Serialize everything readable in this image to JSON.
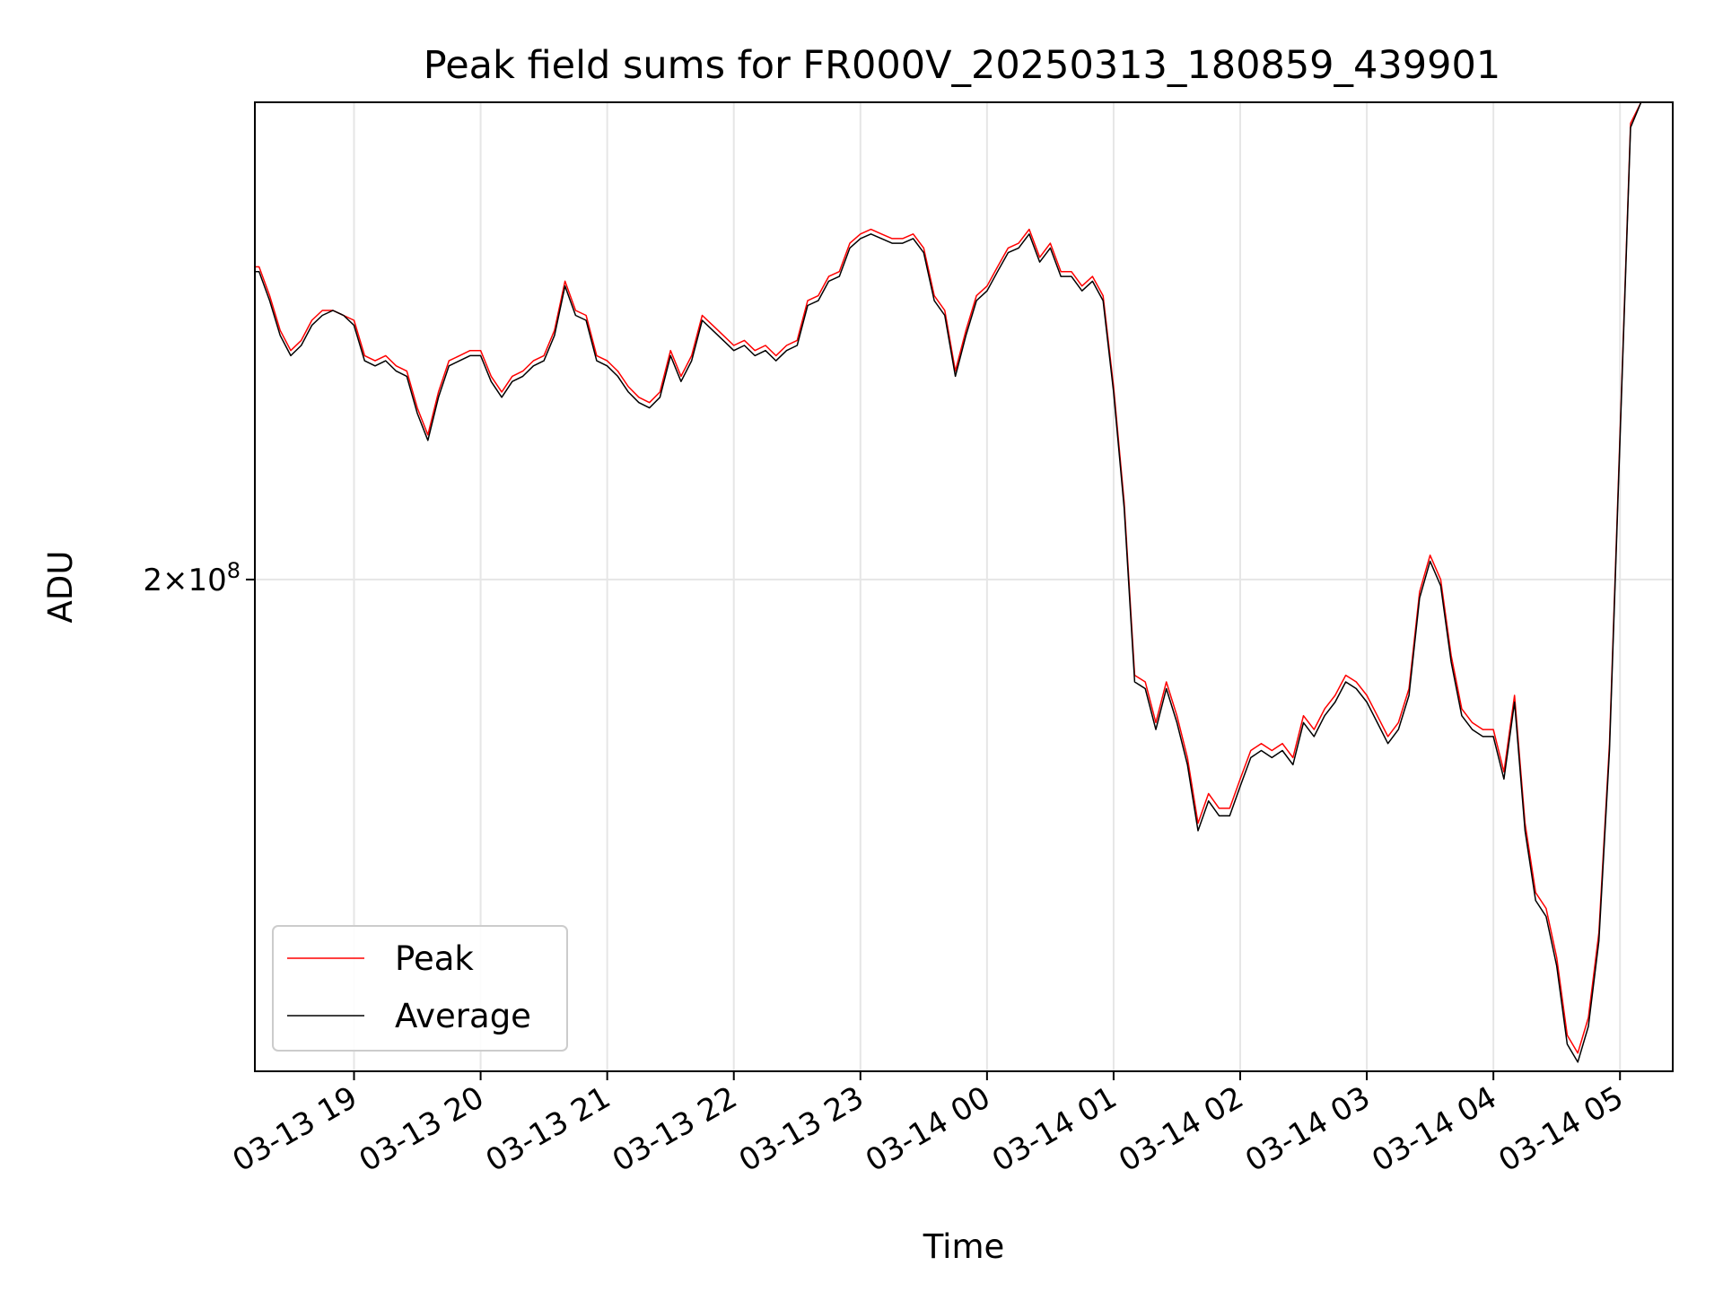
{
  "chart_data": {
    "type": "line",
    "title": "Peak field sums for FR000V_20250313_180859_439901",
    "xlabel": "Time",
    "ylabel": "ADU",
    "yscale": "log",
    "grid": true,
    "legend_position": "lower-left",
    "x_ticks": [
      "03-13 19",
      "03-13 20",
      "03-13 21",
      "03-13 22",
      "03-13 23",
      "03-14 00",
      "03-14 01",
      "03-14 02",
      "03-14 03",
      "03-14 04",
      "03-14 05"
    ],
    "y_ticks": [
      {
        "value": 200000000,
        "mantissa": "2",
        "exponent": "8"
      }
    ],
    "xlim": [
      "2025-03-13 18:13",
      "2025-03-14 05:25"
    ],
    "ylim": [
      134000000,
      295000000
    ],
    "colors": {
      "Peak": "#ff0000",
      "Average": "#000000"
    },
    "series": [
      {
        "name": "Peak",
        "x": [
          "2025-03-13 18:13",
          "2025-03-13 18:15",
          "2025-03-13 18:20",
          "2025-03-13 18:25",
          "2025-03-13 18:30",
          "2025-03-13 18:35",
          "2025-03-13 18:40",
          "2025-03-13 18:45",
          "2025-03-13 18:50",
          "2025-03-13 18:55",
          "2025-03-13 19:00",
          "2025-03-13 19:05",
          "2025-03-13 19:10",
          "2025-03-13 19:15",
          "2025-03-13 19:20",
          "2025-03-13 19:25",
          "2025-03-13 19:30",
          "2025-03-13 19:35",
          "2025-03-13 19:40",
          "2025-03-13 19:45",
          "2025-03-13 19:50",
          "2025-03-13 19:55",
          "2025-03-13 20:00",
          "2025-03-13 20:05",
          "2025-03-13 20:10",
          "2025-03-13 20:15",
          "2025-03-13 20:20",
          "2025-03-13 20:25",
          "2025-03-13 20:30",
          "2025-03-13 20:35",
          "2025-03-13 20:40",
          "2025-03-13 20:45",
          "2025-03-13 20:50",
          "2025-03-13 20:55",
          "2025-03-13 21:00",
          "2025-03-13 21:05",
          "2025-03-13 21:10",
          "2025-03-13 21:15",
          "2025-03-13 21:20",
          "2025-03-13 21:25",
          "2025-03-13 21:30",
          "2025-03-13 21:35",
          "2025-03-13 21:40",
          "2025-03-13 21:45",
          "2025-03-13 21:50",
          "2025-03-13 21:55",
          "2025-03-13 22:00",
          "2025-03-13 22:05",
          "2025-03-13 22:10",
          "2025-03-13 22:15",
          "2025-03-13 22:20",
          "2025-03-13 22:25",
          "2025-03-13 22:30",
          "2025-03-13 22:35",
          "2025-03-13 22:40",
          "2025-03-13 22:45",
          "2025-03-13 22:50",
          "2025-03-13 22:55",
          "2025-03-13 23:00",
          "2025-03-13 23:05",
          "2025-03-13 23:10",
          "2025-03-13 23:15",
          "2025-03-13 23:20",
          "2025-03-13 23:25",
          "2025-03-13 23:30",
          "2025-03-13 23:35",
          "2025-03-13 23:40",
          "2025-03-13 23:45",
          "2025-03-13 23:50",
          "2025-03-13 23:55",
          "2025-03-14 00:00",
          "2025-03-14 00:05",
          "2025-03-14 00:10",
          "2025-03-14 00:15",
          "2025-03-14 00:20",
          "2025-03-14 00:25",
          "2025-03-14 00:30",
          "2025-03-14 00:35",
          "2025-03-14 00:40",
          "2025-03-14 00:45",
          "2025-03-14 00:50",
          "2025-03-14 00:55",
          "2025-03-14 01:00",
          "2025-03-14 01:05",
          "2025-03-14 01:10",
          "2025-03-14 01:15",
          "2025-03-14 01:20",
          "2025-03-14 01:25",
          "2025-03-14 01:30",
          "2025-03-14 01:35",
          "2025-03-14 01:40",
          "2025-03-14 01:45",
          "2025-03-14 01:50",
          "2025-03-14 01:55",
          "2025-03-14 02:00",
          "2025-03-14 02:05",
          "2025-03-14 02:10",
          "2025-03-14 02:15",
          "2025-03-14 02:20",
          "2025-03-14 02:25",
          "2025-03-14 02:30",
          "2025-03-14 02:35",
          "2025-03-14 02:40",
          "2025-03-14 02:45",
          "2025-03-14 02:50",
          "2025-03-14 02:55",
          "2025-03-14 03:00",
          "2025-03-14 03:05",
          "2025-03-14 03:10",
          "2025-03-14 03:15",
          "2025-03-14 03:20",
          "2025-03-14 03:25",
          "2025-03-14 03:30",
          "2025-03-14 03:35",
          "2025-03-14 03:40",
          "2025-03-14 03:45",
          "2025-03-14 03:50",
          "2025-03-14 03:55",
          "2025-03-14 04:00",
          "2025-03-14 04:05",
          "2025-03-14 04:10",
          "2025-03-14 04:15",
          "2025-03-14 04:20",
          "2025-03-14 04:25",
          "2025-03-14 04:30",
          "2025-03-14 04:35",
          "2025-03-14 04:40",
          "2025-03-14 04:45",
          "2025-03-14 04:50",
          "2025-03-14 04:55",
          "2025-03-14 05:00",
          "2025-03-14 05:05",
          "2025-03-14 05:10"
        ],
        "values": [
          258000000,
          258000000,
          252000000,
          245000000,
          241000000,
          243000000,
          247000000,
          249000000,
          249000000,
          248000000,
          247000000,
          240000000,
          239000000,
          240000000,
          238000000,
          237000000,
          230000000,
          225000000,
          233000000,
          239000000,
          240000000,
          241000000,
          241000000,
          236000000,
          233000000,
          236000000,
          237000000,
          239000000,
          240000000,
          245000000,
          255000000,
          249000000,
          248000000,
          240000000,
          239000000,
          237000000,
          234000000,
          232000000,
          231000000,
          233000000,
          241000000,
          236000000,
          240000000,
          248000000,
          246000000,
          244000000,
          242000000,
          243000000,
          241000000,
          242000000,
          240000000,
          242000000,
          243000000,
          251000000,
          252000000,
          256000000,
          257000000,
          263000000,
          265000000,
          266000000,
          265000000,
          264000000,
          264000000,
          265000000,
          262000000,
          252000000,
          249000000,
          237000000,
          245000000,
          252000000,
          254000000,
          258000000,
          262000000,
          263000000,
          266000000,
          260000000,
          263000000,
          257000000,
          257000000,
          254000000,
          256000000,
          252000000,
          234000000,
          213000000,
          185000000,
          184000000,
          178000000,
          184000000,
          179000000,
          173000000,
          164000000,
          168000000,
          166000000,
          166000000,
          170000000,
          174000000,
          175000000,
          174000000,
          175000000,
          173000000,
          179000000,
          177000000,
          180000000,
          182000000,
          185000000,
          184000000,
          182000000,
          179000000,
          176000000,
          178000000,
          183000000,
          198000000,
          204000000,
          200000000,
          188000000,
          180000000,
          178000000,
          177000000,
          177000000,
          171000000,
          182000000,
          164000000,
          155000000,
          153000000,
          147000000,
          138000000,
          136000000,
          140000000,
          150000000,
          175000000,
          225000000,
          290000000,
          295000000
        ]
      },
      {
        "name": "Average",
        "x": [
          "2025-03-13 18:13",
          "2025-03-13 18:15",
          "2025-03-13 18:20",
          "2025-03-13 18:25",
          "2025-03-13 18:30",
          "2025-03-13 18:35",
          "2025-03-13 18:40",
          "2025-03-13 18:45",
          "2025-03-13 18:50",
          "2025-03-13 18:55",
          "2025-03-13 19:00",
          "2025-03-13 19:05",
          "2025-03-13 19:10",
          "2025-03-13 19:15",
          "2025-03-13 19:20",
          "2025-03-13 19:25",
          "2025-03-13 19:30",
          "2025-03-13 19:35",
          "2025-03-13 19:40",
          "2025-03-13 19:45",
          "2025-03-13 19:50",
          "2025-03-13 19:55",
          "2025-03-13 20:00",
          "2025-03-13 20:05",
          "2025-03-13 20:10",
          "2025-03-13 20:15",
          "2025-03-13 20:20",
          "2025-03-13 20:25",
          "2025-03-13 20:30",
          "2025-03-13 20:35",
          "2025-03-13 20:40",
          "2025-03-13 20:45",
          "2025-03-13 20:50",
          "2025-03-13 20:55",
          "2025-03-13 21:00",
          "2025-03-13 21:05",
          "2025-03-13 21:10",
          "2025-03-13 21:15",
          "2025-03-13 21:20",
          "2025-03-13 21:25",
          "2025-03-13 21:30",
          "2025-03-13 21:35",
          "2025-03-13 21:40",
          "2025-03-13 21:45",
          "2025-03-13 21:50",
          "2025-03-13 21:55",
          "2025-03-13 22:00",
          "2025-03-13 22:05",
          "2025-03-13 22:10",
          "2025-03-13 22:15",
          "2025-03-13 22:20",
          "2025-03-13 22:25",
          "2025-03-13 22:30",
          "2025-03-13 22:35",
          "2025-03-13 22:40",
          "2025-03-13 22:45",
          "2025-03-13 22:50",
          "2025-03-13 22:55",
          "2025-03-13 23:00",
          "2025-03-13 23:05",
          "2025-03-13 23:10",
          "2025-03-13 23:15",
          "2025-03-13 23:20",
          "2025-03-13 23:25",
          "2025-03-13 23:30",
          "2025-03-13 23:35",
          "2025-03-13 23:40",
          "2025-03-13 23:45",
          "2025-03-13 23:50",
          "2025-03-13 23:55",
          "2025-03-14 00:00",
          "2025-03-14 00:05",
          "2025-03-14 00:10",
          "2025-03-14 00:15",
          "2025-03-14 00:20",
          "2025-03-14 00:25",
          "2025-03-14 00:30",
          "2025-03-14 00:35",
          "2025-03-14 00:40",
          "2025-03-14 00:45",
          "2025-03-14 00:50",
          "2025-03-14 00:55",
          "2025-03-14 01:00",
          "2025-03-14 01:05",
          "2025-03-14 01:10",
          "2025-03-14 01:15",
          "2025-03-14 01:20",
          "2025-03-14 01:25",
          "2025-03-14 01:30",
          "2025-03-14 01:35",
          "2025-03-14 01:40",
          "2025-03-14 01:45",
          "2025-03-14 01:50",
          "2025-03-14 01:55",
          "2025-03-14 02:00",
          "2025-03-14 02:05",
          "2025-03-14 02:10",
          "2025-03-14 02:15",
          "2025-03-14 02:20",
          "2025-03-14 02:25",
          "2025-03-14 02:30",
          "2025-03-14 02:35",
          "2025-03-14 02:40",
          "2025-03-14 02:45",
          "2025-03-14 02:50",
          "2025-03-14 02:55",
          "2025-03-14 03:00",
          "2025-03-14 03:05",
          "2025-03-14 03:10",
          "2025-03-14 03:15",
          "2025-03-14 03:20",
          "2025-03-14 03:25",
          "2025-03-14 03:30",
          "2025-03-14 03:35",
          "2025-03-14 03:40",
          "2025-03-14 03:45",
          "2025-03-14 03:50",
          "2025-03-14 03:55",
          "2025-03-14 04:00",
          "2025-03-14 04:05",
          "2025-03-14 04:10",
          "2025-03-14 04:15",
          "2025-03-14 04:20",
          "2025-03-14 04:25",
          "2025-03-14 04:30",
          "2025-03-14 04:35",
          "2025-03-14 04:40",
          "2025-03-14 04:45",
          "2025-03-14 04:50",
          "2025-03-14 04:55",
          "2025-03-14 05:00",
          "2025-03-14 05:05",
          "2025-03-14 05:10"
        ],
        "values": [
          257000000,
          257000000,
          251000000,
          244000000,
          240000000,
          242000000,
          246000000,
          248000000,
          249000000,
          248000000,
          246000000,
          239000000,
          238000000,
          239000000,
          237000000,
          236000000,
          229000000,
          224000000,
          232000000,
          238000000,
          239000000,
          240000000,
          240000000,
          235000000,
          232000000,
          235000000,
          236000000,
          238000000,
          239000000,
          244000000,
          254000000,
          248000000,
          247000000,
          239000000,
          238000000,
          236000000,
          233000000,
          231000000,
          230000000,
          232000000,
          240000000,
          235000000,
          239000000,
          247000000,
          245000000,
          243000000,
          241000000,
          242000000,
          240000000,
          241000000,
          239000000,
          241000000,
          242000000,
          250000000,
          251000000,
          255000000,
          256000000,
          262000000,
          264000000,
          265000000,
          264000000,
          263000000,
          263000000,
          264000000,
          261000000,
          251000000,
          248000000,
          236000000,
          244000000,
          251000000,
          253000000,
          257000000,
          261000000,
          262000000,
          265000000,
          259000000,
          262000000,
          256000000,
          256000000,
          253000000,
          255000000,
          251000000,
          233000000,
          212000000,
          184000000,
          183000000,
          177000000,
          183000000,
          178000000,
          172000000,
          163000000,
          167000000,
          165000000,
          165000000,
          169000000,
          173000000,
          174000000,
          173000000,
          174000000,
          172000000,
          178000000,
          176000000,
          179000000,
          181000000,
          184000000,
          183000000,
          181000000,
          178000000,
          175000000,
          177000000,
          182000000,
          197000000,
          203000000,
          199000000,
          187000000,
          179000000,
          177000000,
          176000000,
          176000000,
          170000000,
          181000000,
          163000000,
          154000000,
          152000000,
          146000000,
          137000000,
          135000000,
          139000000,
          149000000,
          174000000,
          224000000,
          289000000,
          295000000
        ]
      }
    ]
  }
}
